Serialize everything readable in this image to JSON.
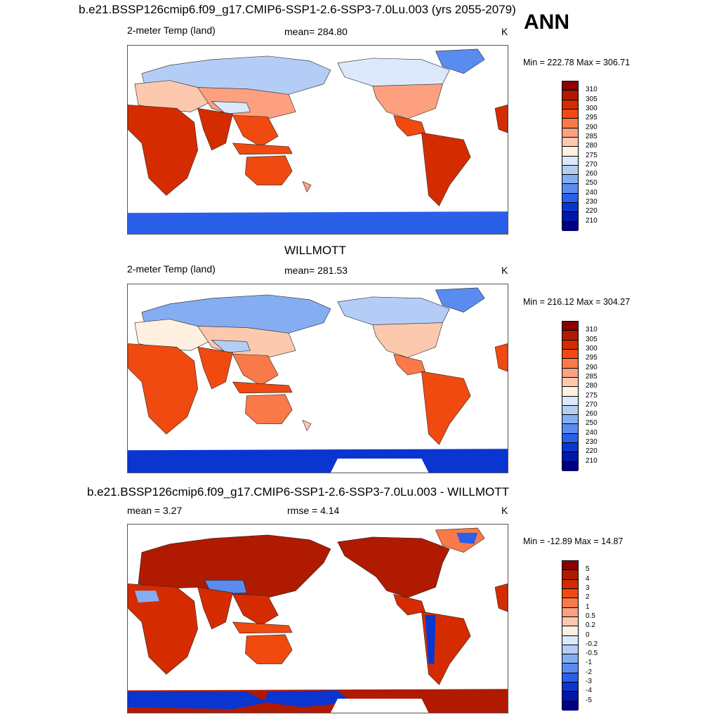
{
  "panel1": {
    "title": "b.e21.BSSP126cmip6.f09_g17.CMIP6-SSP1-2.6-SSP3-7.0Lu.003 (yrs 2055-2079)",
    "left_label": "2-meter Temp (land)",
    "mean_label": "mean= 284.80",
    "units": "K",
    "minmax": "Min = 222.78 Max = 306.71"
  },
  "season": "ANN",
  "panel2": {
    "title": "WILLMOTT",
    "left_label": "2-meter Temp (land)",
    "mean_label": "mean= 281.53",
    "units": "K",
    "minmax": "Min = 216.12 Max = 304.27"
  },
  "panel3": {
    "title": "b.e21.BSSP126cmip6.f09_g17.CMIP6-SSP1-2.6-SSP3-7.0Lu.003 - WILLMOTT",
    "mean_label": "mean =   3.27",
    "rmse_label": "rmse =   4.14",
    "units": "K",
    "minmax": "Min = -12.89 Max =  14.87"
  },
  "colorbar_temp": {
    "labels": [
      "310",
      "305",
      "300",
      "295",
      "290",
      "285",
      "280",
      "275",
      "270",
      "260",
      "250",
      "240",
      "230",
      "220",
      "210"
    ],
    "colors": [
      "#8b0000",
      "#b01a00",
      "#d42c00",
      "#f04a10",
      "#f97a48",
      "#fca080",
      "#fdc9ae",
      "#fff0e0",
      "#dbe9fb",
      "#b3cdf7",
      "#85adf2",
      "#5a8cf0",
      "#2a5fea",
      "#0a35d0",
      "#0018a8",
      "#000080"
    ]
  },
  "colorbar_diff": {
    "labels": [
      "5",
      "4",
      "3",
      "2",
      "1",
      "0.5",
      "0.2",
      "0",
      "-0.2",
      "-0.5",
      "-1",
      "-2",
      "-3",
      "-4",
      "-5"
    ],
    "colors": [
      "#8b0000",
      "#b01a00",
      "#d42c00",
      "#f04a10",
      "#f97a48",
      "#fca080",
      "#fdc9ae",
      "#fff0e0",
      "#dbe9fb",
      "#b3cdf7",
      "#85adf2",
      "#5a8cf0",
      "#2a5fea",
      "#0a35d0",
      "#0018a8",
      "#000080"
    ]
  }
}
